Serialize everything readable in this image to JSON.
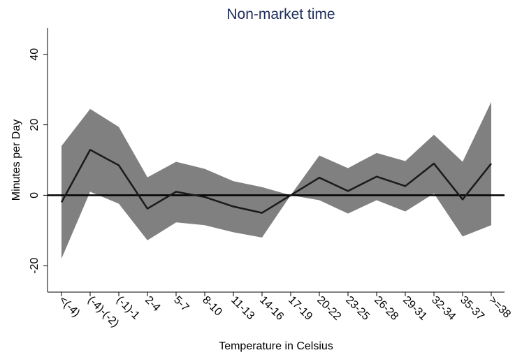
{
  "chart_data": {
    "type": "line",
    "title": "Non-market time",
    "xlabel": "Temperature in Celsius",
    "ylabel": "Minutes per Day",
    "categories": [
      "<(-4)",
      "(-4)-(-2)",
      "(-1)-1",
      "2-4",
      "5-7",
      "8-10",
      "11-13",
      "14-16",
      "17-19",
      "20-22",
      "23-25",
      "26-28",
      "29-31",
      "32-34",
      "35-37",
      ">=38"
    ],
    "values": [
      -2,
      12.9,
      8.5,
      -3.8,
      1,
      -0.5,
      -3.2,
      -5,
      0,
      5,
      1.2,
      5.3,
      2.6,
      9,
      -1.2,
      9
    ],
    "upper": [
      14,
      24.5,
      19.4,
      5.1,
      9.5,
      7.5,
      4,
      2.3,
      0,
      11.3,
      7.7,
      12,
      9.7,
      17.2,
      9.5,
      26.5
    ],
    "lower": [
      -18,
      1,
      -2.4,
      -12.8,
      -7.7,
      -8.5,
      -10.5,
      -12,
      0,
      -1.4,
      -5.2,
      -1.4,
      -4.6,
      0.5,
      -11.7,
      -8.5
    ],
    "color": "#1a1a1a",
    "band_color": "#808080",
    "hline": 0,
    "ylim": [
      -27.5,
      47.5
    ],
    "yticks": [
      -20,
      0,
      20,
      40
    ]
  }
}
